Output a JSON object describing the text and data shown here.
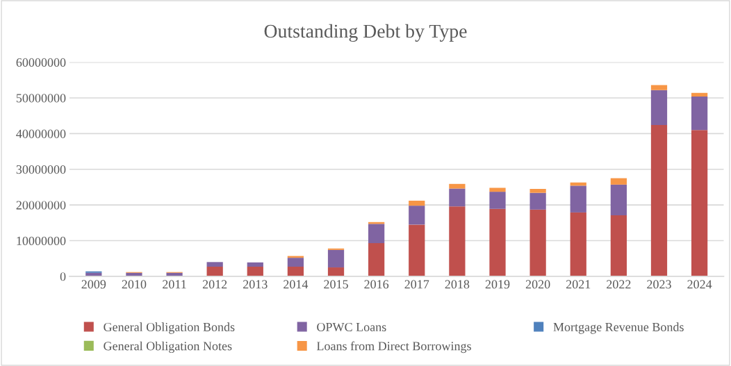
{
  "chart_data": {
    "type": "bar",
    "title": "Outstanding Debt by Type",
    "stacked": true,
    "categories": [
      "2009",
      "2010",
      "2011",
      "2012",
      "2013",
      "2014",
      "2015",
      "2016",
      "2017",
      "2018",
      "2019",
      "2020",
      "2021",
      "2022",
      "2023",
      "2024"
    ],
    "series": [
      {
        "name": "General Obligation Bonds",
        "color": "#c0504d",
        "values": [
          0,
          0,
          0,
          2700000,
          2700000,
          2700000,
          2500000,
          9300000,
          14500000,
          19600000,
          18900000,
          18700000,
          17900000,
          17100000,
          42400000,
          41000000
        ]
      },
      {
        "name": "OPWC Loans",
        "color": "#8064a2",
        "values": [
          1000000,
          1000000,
          1000000,
          1300000,
          1200000,
          2500000,
          4900000,
          5400000,
          5300000,
          5000000,
          4800000,
          4700000,
          7500000,
          8600000,
          9800000,
          9400000
        ]
      },
      {
        "name": "Mortgage Revenue Bonds",
        "color": "#4f81bd",
        "values": [
          400000,
          0,
          0,
          0,
          0,
          0,
          0,
          0,
          0,
          0,
          0,
          0,
          0,
          0,
          0,
          0
        ]
      },
      {
        "name": "General Obligation Notes",
        "color": "#9bbb59",
        "values": [
          0,
          0,
          0,
          0,
          0,
          0,
          0,
          0,
          0,
          0,
          0,
          0,
          0,
          0,
          0,
          0
        ]
      },
      {
        "name": "Loans from Direct Borrowings",
        "color": "#f79646",
        "values": [
          0,
          200000,
          200000,
          0,
          0,
          500000,
          400000,
          500000,
          1400000,
          1300000,
          1100000,
          1100000,
          900000,
          1800000,
          1400000,
          1000000
        ]
      }
    ],
    "ylim": [
      0,
      60000000
    ],
    "yticks": [
      0,
      10000000,
      20000000,
      30000000,
      40000000,
      50000000,
      60000000
    ],
    "grid": "y",
    "legend": "bottom"
  }
}
